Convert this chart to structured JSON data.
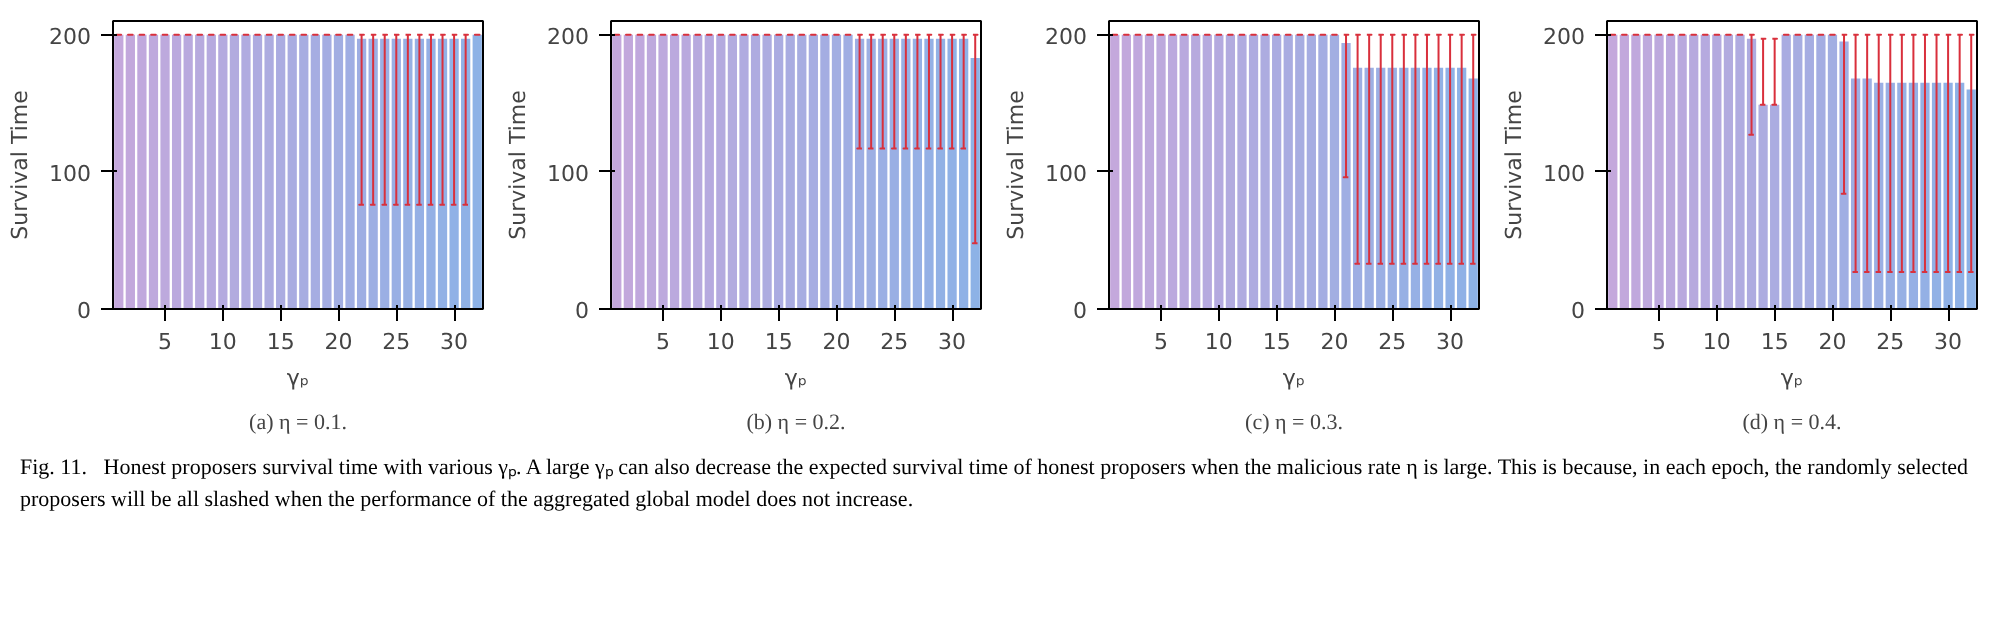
{
  "chart_data": [
    {
      "type": "bar",
      "title": "(a) η = 0.1.",
      "xlabel": "γₚ",
      "ylabel": "Survival Time",
      "x": [
        1,
        2,
        3,
        4,
        5,
        6,
        7,
        8,
        9,
        10,
        11,
        12,
        13,
        14,
        15,
        16,
        17,
        18,
        19,
        20,
        21,
        22,
        23,
        24,
        25,
        26,
        27,
        28,
        29,
        30,
        31,
        32
      ],
      "values": [
        200,
        200,
        200,
        200,
        200,
        200,
        200,
        200,
        200,
        200,
        200,
        200,
        200,
        200,
        200,
        200,
        200,
        200,
        200,
        200,
        200,
        197,
        197,
        197,
        197,
        197,
        197,
        197,
        197,
        197,
        197,
        200
      ],
      "errors": [
        0,
        0,
        0,
        0,
        0,
        0,
        0,
        0,
        0,
        0,
        0,
        0,
        0,
        0,
        0,
        0,
        0,
        0,
        0,
        0,
        0,
        [
          76,
          200
        ],
        [
          76,
          200
        ],
        [
          76,
          200
        ],
        [
          76,
          200
        ],
        [
          76,
          200
        ],
        [
          76,
          200
        ],
        [
          76,
          200
        ],
        [
          76,
          200
        ],
        [
          76,
          200
        ],
        [
          76,
          200
        ],
        0
      ],
      "colors": [
        "#c4a8dc",
        "#c2a8dc",
        "#c0a8dd",
        "#bea9dd",
        "#bda9dd",
        "#bba9de",
        "#b9a9de",
        "#b7aade",
        "#b6aadf",
        "#b4aadf",
        "#b2abdf",
        "#b0abe0",
        "#aeabe0",
        "#adace0",
        "#abace1",
        "#a9ace1",
        "#a7ade1",
        "#a6ade2",
        "#a4ade2",
        "#a2aee2",
        "#a0aee3",
        "#9eaee3",
        "#9dafe3",
        "#9bafe4",
        "#99afe4",
        "#97b0e4",
        "#96b0e5",
        "#94b0e5",
        "#92b1e5",
        "#90b1e6",
        "#8fb1e6",
        "#8db2e6"
      ],
      "xlim": [
        0.5,
        32.5
      ],
      "xticks": [
        5,
        10,
        15,
        20,
        25,
        30
      ],
      "ylim": [
        0,
        210
      ],
      "yticks": [
        0,
        100,
        200
      ],
      "grid": false,
      "annotations": [
        "Fig. 11.   Honest proposers survival time with various γₚ. A large γₚ can also decrease the expected survival time of honest proposers when the malicious rate η is large. This is because, in each epoch, the randomly selected proposers will be all slashed when the performance of the aggregated global model does not increase."
      ]
    },
    {
      "type": "bar",
      "title": "(b) η = 0.2.",
      "xlabel": "γₚ",
      "ylabel": "Survival Time",
      "x": [
        1,
        2,
        3,
        4,
        5,
        6,
        7,
        8,
        9,
        10,
        11,
        12,
        13,
        14,
        15,
        16,
        17,
        18,
        19,
        20,
        21,
        22,
        23,
        24,
        25,
        26,
        27,
        28,
        29,
        30,
        31,
        32
      ],
      "values": [
        200,
        200,
        200,
        200,
        200,
        200,
        200,
        200,
        200,
        200,
        200,
        200,
        200,
        200,
        200,
        200,
        200,
        200,
        200,
        200,
        200,
        197,
        197,
        197,
        197,
        197,
        197,
        197,
        197,
        197,
        197,
        183
      ],
      "errors": [
        0,
        0,
        0,
        0,
        0,
        0,
        0,
        0,
        0,
        0,
        0,
        0,
        0,
        0,
        0,
        0,
        0,
        0,
        0,
        0,
        0,
        [
          117,
          200
        ],
        [
          117,
          200
        ],
        [
          117,
          200
        ],
        [
          117,
          200
        ],
        [
          117,
          200
        ],
        [
          117,
          200
        ],
        [
          117,
          200
        ],
        [
          117,
          200
        ],
        [
          117,
          200
        ],
        [
          117,
          200
        ],
        [
          48,
          200
        ]
      ],
      "colors": [
        "#c4a8dc",
        "#c2a8dc",
        "#c0a8dd",
        "#bea9dd",
        "#bda9dd",
        "#bba9de",
        "#b9a9de",
        "#b7aade",
        "#b6aadf",
        "#b4aadf",
        "#b2abdf",
        "#b0abe0",
        "#aeabe0",
        "#adace0",
        "#abace1",
        "#a9ace1",
        "#a7ade1",
        "#a6ade2",
        "#a4ade2",
        "#a2aee2",
        "#a0aee3",
        "#9eaee3",
        "#9dafe3",
        "#9bafe4",
        "#99afe4",
        "#97b0e4",
        "#96b0e5",
        "#94b0e5",
        "#92b1e5",
        "#90b1e6",
        "#8fb1e6",
        "#8db2e6"
      ],
      "xlim": [
        0.5,
        32.5
      ],
      "xticks": [
        5,
        10,
        15,
        20,
        25,
        30
      ],
      "ylim": [
        0,
        210
      ],
      "yticks": [
        0,
        100,
        200
      ],
      "grid": false
    },
    {
      "type": "bar",
      "title": "(c) η = 0.3.",
      "xlabel": "γₚ",
      "ylabel": "Survival Time",
      "x": [
        1,
        2,
        3,
        4,
        5,
        6,
        7,
        8,
        9,
        10,
        11,
        12,
        13,
        14,
        15,
        16,
        17,
        18,
        19,
        20,
        21,
        22,
        23,
        24,
        25,
        26,
        27,
        28,
        29,
        30,
        31,
        32
      ],
      "values": [
        200,
        200,
        200,
        200,
        200,
        200,
        200,
        200,
        200,
        200,
        200,
        200,
        200,
        200,
        200,
        200,
        200,
        200,
        200,
        200,
        194,
        176,
        176,
        176,
        176,
        176,
        176,
        176,
        176,
        176,
        176,
        168
      ],
      "errors": [
        0,
        0,
        0,
        0,
        0,
        0,
        0,
        0,
        0,
        0,
        0,
        0,
        0,
        0,
        0,
        0,
        0,
        0,
        0,
        0,
        [
          96,
          200
        ],
        [
          33,
          200
        ],
        [
          33,
          200
        ],
        [
          33,
          200
        ],
        [
          33,
          200
        ],
        [
          33,
          200
        ],
        [
          33,
          200
        ],
        [
          33,
          200
        ],
        [
          33,
          200
        ],
        [
          33,
          200
        ],
        [
          33,
          200
        ],
        [
          33,
          200
        ]
      ],
      "colors": [
        "#c4a8dc",
        "#c2a8dc",
        "#c0a8dd",
        "#bea9dd",
        "#bda9dd",
        "#bba9de",
        "#b9a9de",
        "#b7aade",
        "#b6aadf",
        "#b4aadf",
        "#b2abdf",
        "#b0abe0",
        "#aeabe0",
        "#adace0",
        "#abace1",
        "#a9ace1",
        "#a7ade1",
        "#a6ade2",
        "#a4ade2",
        "#a2aee2",
        "#a0aee3",
        "#9eaee3",
        "#9dafe3",
        "#9bafe4",
        "#99afe4",
        "#97b0e4",
        "#96b0e5",
        "#94b0e5",
        "#92b1e5",
        "#90b1e6",
        "#8fb1e6",
        "#8db2e6"
      ],
      "xlim": [
        0.5,
        32.5
      ],
      "xticks": [
        5,
        10,
        15,
        20,
        25,
        30
      ],
      "ylim": [
        0,
        210
      ],
      "yticks": [
        0,
        100,
        200
      ],
      "grid": false
    },
    {
      "type": "bar",
      "title": "(d) η = 0.4.",
      "xlabel": "γₚ",
      "ylabel": "Survival Time",
      "x": [
        1,
        2,
        3,
        4,
        5,
        6,
        7,
        8,
        9,
        10,
        11,
        12,
        13,
        14,
        15,
        16,
        17,
        18,
        19,
        20,
        21,
        22,
        23,
        24,
        25,
        26,
        27,
        28,
        29,
        30,
        31,
        32
      ],
      "values": [
        200,
        200,
        200,
        200,
        200,
        200,
        200,
        200,
        200,
        200,
        200,
        200,
        197,
        149,
        149,
        200,
        200,
        200,
        200,
        200,
        195,
        168,
        168,
        165,
        165,
        165,
        165,
        165,
        165,
        165,
        165,
        160
      ],
      "errors": [
        0,
        0,
        0,
        0,
        0,
        0,
        0,
        0,
        0,
        0,
        0,
        0,
        [
          127,
          200
        ],
        [
          149,
          197
        ],
        [
          149,
          197
        ],
        0,
        0,
        0,
        0,
        0,
        [
          84,
          200
        ],
        [
          27,
          200
        ],
        [
          27,
          200
        ],
        [
          27,
          200
        ],
        [
          27,
          200
        ],
        [
          27,
          200
        ],
        [
          27,
          200
        ],
        [
          27,
          200
        ],
        [
          27,
          200
        ],
        [
          27,
          200
        ],
        [
          27,
          200
        ],
        [
          27,
          200
        ]
      ],
      "colors": [
        "#c4a8dc",
        "#c2a8dc",
        "#c0a8dd",
        "#bea9dd",
        "#bda9dd",
        "#bba9de",
        "#b9a9de",
        "#b7aade",
        "#b6aadf",
        "#b4aadf",
        "#b2abdf",
        "#b0abe0",
        "#aeabe0",
        "#adace0",
        "#abace1",
        "#a9ace1",
        "#a7ade1",
        "#a6ade2",
        "#a4ade2",
        "#a2aee2",
        "#a0aee3",
        "#9eaee3",
        "#9dafe3",
        "#9bafe4",
        "#99afe4",
        "#97b0e4",
        "#96b0e5",
        "#94b0e5",
        "#92b1e5",
        "#90b1e6",
        "#8fb1e6",
        "#8db2e6"
      ],
      "xlim": [
        0.5,
        32.5
      ],
      "xticks": [
        5,
        10,
        15,
        20,
        25,
        30
      ],
      "ylim": [
        0,
        210
      ],
      "yticks": [
        0,
        100,
        200
      ],
      "grid": false
    }
  ]
}
